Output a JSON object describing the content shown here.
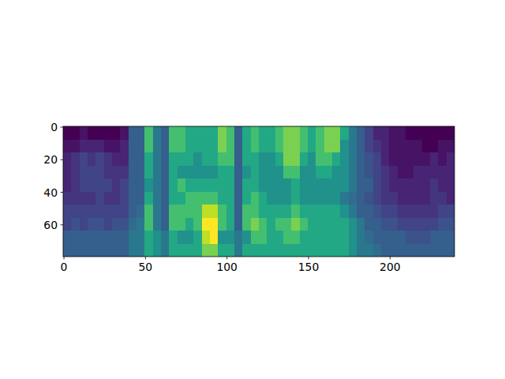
{
  "chart_data": {
    "type": "heatmap",
    "color": "viridis",
    "xlim": [
      -0.5,
      239.5
    ],
    "ylim": [
      79.5,
      -0.5
    ],
    "xticks": [
      0,
      50,
      100,
      150,
      200
    ],
    "yticks": [
      0,
      20,
      40,
      60
    ],
    "color_range": [
      0,
      10
    ],
    "x_edges": [
      -0.5,
      4.5,
      9.5,
      14.5,
      19.5,
      24.5,
      29.5,
      34.5,
      39.5,
      44.5,
      49.5,
      54.5,
      59.5,
      64.5,
      69.5,
      74.5,
      79.5,
      84.5,
      89.5,
      94.5,
      99.5,
      104.5,
      109.5,
      114.5,
      119.5,
      124.5,
      129.5,
      134.5,
      139.5,
      144.5,
      149.5,
      154.5,
      159.5,
      164.5,
      169.5,
      174.5,
      179.5,
      184.5,
      189.5,
      194.5,
      199.5,
      204.5,
      209.5,
      214.5,
      219.5,
      224.5,
      229.5,
      234.5,
      239.5
    ],
    "y_edges": [
      -0.5,
      7.5,
      15.5,
      23.5,
      31.5,
      39.5,
      47.5,
      55.5,
      63.5,
      71.5,
      79.5
    ],
    "values": [
      [
        0,
        0,
        0.5,
        0,
        0,
        0,
        0,
        0.5,
        3,
        3,
        7,
        4,
        3,
        7,
        7,
        6,
        6,
        6,
        6,
        8,
        7,
        3,
        6,
        7,
        6,
        6,
        7,
        8,
        8,
        7,
        6,
        7,
        8,
        8,
        6,
        4,
        3,
        2,
        1,
        1,
        0.5,
        0.5,
        0,
        0,
        0,
        0,
        0,
        0
      ],
      [
        0.5,
        0.5,
        1,
        1,
        1,
        0.5,
        0.5,
        1,
        3,
        3,
        7,
        4,
        3,
        7,
        7,
        6,
        6,
        6,
        6,
        8,
        7,
        3,
        6,
        7,
        6,
        6,
        7,
        8,
        8,
        7,
        6,
        7,
        8,
        8,
        5,
        4,
        3,
        2,
        1.5,
        1,
        0.5,
        0.5,
        0.5,
        0.5,
        0,
        0,
        0.5,
        0.5
      ],
      [
        1,
        1.5,
        2,
        1.5,
        2,
        1.5,
        1,
        1,
        3,
        3,
        6,
        4,
        3,
        6,
        6,
        6,
        5,
        6,
        6,
        7,
        7,
        3,
        6,
        6,
        5,
        5,
        6,
        8,
        8,
        6,
        5,
        7,
        7,
        6,
        5,
        4,
        3,
        2.5,
        2,
        1,
        0.5,
        0.5,
        0.5,
        0.5,
        0.5,
        1,
        0.5,
        1
      ],
      [
        1,
        1.5,
        2,
        2,
        2,
        1.5,
        1.5,
        1.5,
        3,
        3,
        6,
        4,
        3,
        6,
        5,
        5,
        5,
        5,
        5,
        6,
        6,
        3,
        5,
        6,
        5,
        5,
        5,
        7,
        7,
        5,
        5,
        6,
        6,
        5,
        5,
        4,
        3,
        2.5,
        2,
        1.5,
        1,
        0.5,
        0.5,
        1,
        1,
        1,
        1,
        1
      ],
      [
        1,
        1.5,
        2,
        2,
        2,
        2,
        1.5,
        2,
        3,
        3,
        5,
        4,
        3,
        6,
        7,
        6,
        6,
        6,
        6,
        6,
        6,
        3,
        6,
        6,
        5,
        5,
        5,
        5,
        6,
        5,
        5,
        5,
        5,
        5,
        5,
        4,
        3,
        3,
        2,
        1.5,
        1,
        1,
        1,
        1,
        1,
        1.5,
        1,
        1
      ],
      [
        1.5,
        1.5,
        1.5,
        1.5,
        2,
        1.5,
        1.5,
        2,
        3,
        3,
        6,
        4,
        3,
        6,
        6,
        7,
        7,
        7,
        7,
        6,
        6,
        3,
        6,
        7,
        6,
        5,
        5,
        5,
        6,
        5,
        5,
        5,
        5,
        5,
        4,
        3.5,
        3,
        2.5,
        2,
        1.5,
        1.5,
        1,
        1,
        1,
        1,
        1.5,
        1.5,
        1
      ],
      [
        2,
        2,
        2,
        2,
        2,
        2,
        2,
        2,
        3,
        3.5,
        7,
        4,
        3,
        7,
        7,
        7,
        7,
        9,
        9,
        7,
        6,
        3,
        7,
        7,
        6,
        6,
        6,
        6,
        7,
        6,
        6,
        6,
        6,
        6,
        5,
        4,
        3,
        3,
        2.5,
        2,
        2,
        1.5,
        1.5,
        1.5,
        1.5,
        1.5,
        2,
        2
      ],
      [
        2,
        2.5,
        2,
        2.5,
        2.5,
        2,
        2.5,
        2.5,
        3.5,
        4,
        7,
        4,
        3,
        7,
        7,
        6,
        7,
        10,
        10,
        7,
        6,
        3,
        7,
        8,
        7,
        6,
        7,
        7,
        8,
        7,
        6,
        6,
        6,
        6,
        6,
        5,
        4,
        3,
        3,
        2.5,
        2.5,
        2,
        2,
        2,
        2,
        2,
        2.5,
        2.5
      ],
      [
        3,
        3,
        3,
        3,
        3,
        3,
        3,
        3,
        4,
        4,
        6,
        5,
        4,
        6,
        5,
        5,
        6,
        9,
        10,
        5,
        5,
        4,
        5,
        7,
        7,
        6,
        6,
        7,
        7,
        6,
        6,
        6,
        6,
        6,
        6,
        5,
        4,
        3.5,
        3,
        3,
        3,
        3,
        2.5,
        2.5,
        2.5,
        3,
        3,
        3
      ],
      [
        3,
        3,
        3,
        3,
        3,
        3,
        3,
        3,
        4,
        4,
        6,
        5,
        4,
        6,
        6,
        6,
        6,
        8,
        8,
        6,
        6,
        4,
        6,
        6,
        6,
        6,
        6,
        6,
        6,
        6,
        6,
        6,
        6,
        6,
        6,
        5,
        4,
        4,
        3.5,
        3,
        3,
        3,
        3,
        3,
        3,
        3,
        3,
        3
      ]
    ]
  }
}
